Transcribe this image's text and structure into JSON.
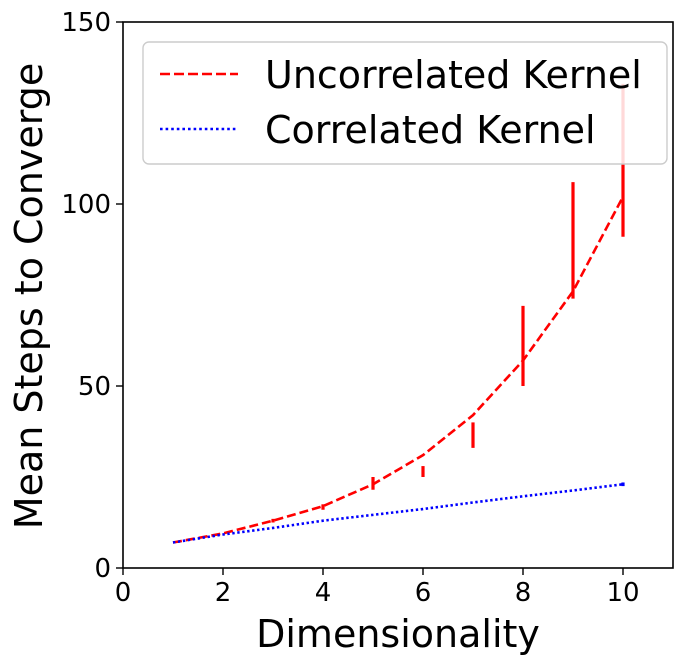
{
  "chart_data": {
    "type": "line",
    "xlabel": "Dimensionality",
    "ylabel": "Mean Steps to Converge",
    "xlim": [
      0,
      11
    ],
    "ylim": [
      0,
      150
    ],
    "xticks": [
      0,
      2,
      4,
      6,
      8,
      10
    ],
    "yticks": [
      0,
      50,
      100,
      150
    ],
    "xtick_labels": [
      "0",
      "2",
      "4",
      "6",
      "8",
      "10"
    ],
    "ytick_labels": [
      "0",
      "50",
      "100",
      "150"
    ],
    "grid": false,
    "legend_position": "top-right",
    "series": [
      {
        "name": "Uncorrelated Kernel",
        "color": "#ff0000",
        "style": "dashed",
        "x": [
          1,
          2,
          3,
          4,
          5,
          6,
          7,
          8,
          9,
          10
        ],
        "y": [
          7,
          9.5,
          13,
          17,
          23,
          31,
          42,
          57,
          76,
          102
        ],
        "err_low": [
          7,
          9.5,
          12.5,
          16,
          21.5,
          25,
          33,
          50,
          74,
          91
        ],
        "err_high": [
          7,
          9.5,
          13.5,
          17.5,
          25,
          28,
          40,
          72,
          106,
          133
        ]
      },
      {
        "name": "Correlated Kernel",
        "color": "#0000ff",
        "style": "dotted",
        "x": [
          1,
          2,
          3,
          4,
          5,
          6,
          7,
          8,
          9,
          10
        ],
        "y": [
          7,
          9.2,
          11,
          13,
          14.6,
          16.2,
          18,
          19.7,
          21.3,
          23
        ],
        "err_low": [
          7,
          9.2,
          11,
          13,
          14.6,
          16.2,
          18,
          19.7,
          21.3,
          22.5
        ],
        "err_high": [
          7,
          9.2,
          11,
          13,
          14.6,
          16.2,
          18,
          19.7,
          21.3,
          23.5
        ]
      }
    ]
  }
}
